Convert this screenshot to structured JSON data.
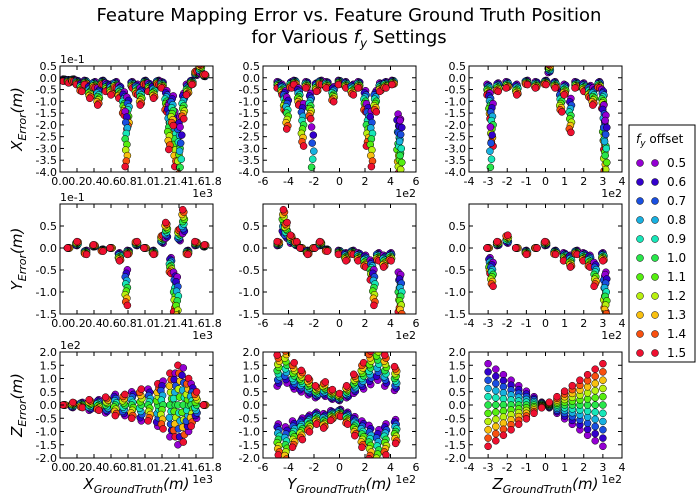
{
  "figure": {
    "title_line1": "Feature Mapping Error vs. Feature Ground Truth Position",
    "title_line2": "for Various f_y Settings"
  },
  "legend": {
    "title": "f_y offset",
    "entries": [
      "0.5",
      "0.6",
      "0.7",
      "0.8",
      "0.9",
      "1.0",
      "1.1",
      "1.2",
      "1.3",
      "1.4",
      "1.5"
    ],
    "colors": [
      "#9400d3",
      "#3300cc",
      "#1a4fe0",
      "#18b0e0",
      "#17e6b8",
      "#28e64a",
      "#55ee10",
      "#b8f010",
      "#f8c010",
      "#f85010",
      "#ee1030"
    ]
  },
  "chart_data": [
    {
      "type": "scatter",
      "row": 0,
      "col": 0,
      "ylabel": "X_{Error}(m)",
      "y_exponent": "1e-1",
      "x_exponent": "1e3",
      "xlim": [
        0,
        1.8
      ],
      "ylim": [
        -4.0,
        0.5
      ],
      "xticks": [
        "0.0",
        "0.2",
        "0.4",
        "0.6",
        "0.8",
        "1.0",
        "1.2",
        "1.4",
        "1.6",
        "1.8"
      ],
      "yticks": [
        "0.5",
        "0.0",
        "-0.5",
        "-1.0",
        "-1.5",
        "-2.0",
        "-2.5",
        "-3.0",
        "-3.5",
        "-4.0"
      ],
      "points": [
        [
          0.05,
          -0.1
        ],
        [
          0.1,
          -0.15
        ],
        [
          0.15,
          -0.1
        ],
        [
          0.2,
          -0.2
        ],
        [
          0.25,
          -0.4
        ],
        [
          0.3,
          -0.2
        ],
        [
          0.35,
          -0.6
        ],
        [
          0.4,
          -0.3
        ],
        [
          0.45,
          -0.8
        ],
        [
          0.5,
          -0.2
        ],
        [
          0.55,
          -0.4
        ],
        [
          0.6,
          -0.5
        ],
        [
          0.65,
          -0.3
        ],
        [
          0.7,
          -0.6
        ],
        [
          0.75,
          -1.1
        ],
        [
          0.8,
          -1.5
        ],
        [
          0.85,
          -0.3
        ],
        [
          0.9,
          -0.5
        ],
        [
          0.95,
          -0.8
        ],
        [
          1.0,
          -0.2
        ],
        [
          1.05,
          -0.4
        ],
        [
          1.1,
          -0.6
        ],
        [
          1.15,
          -0.2
        ],
        [
          1.2,
          -0.3
        ],
        [
          1.25,
          -1.0
        ],
        [
          1.3,
          -1.9
        ],
        [
          1.35,
          -2.6
        ],
        [
          1.4,
          -3.0
        ],
        [
          1.42,
          -3.8
        ],
        [
          1.45,
          -1.2
        ],
        [
          1.5,
          -0.5
        ],
        [
          1.55,
          -0.2
        ],
        [
          1.6,
          0.2
        ],
        [
          1.65,
          0.4
        ],
        [
          1.7,
          0.1
        ],
        [
          0.78,
          -2.6
        ],
        [
          1.28,
          -2.1
        ],
        [
          1.32,
          -1.4
        ]
      ]
    },
    {
      "type": "scatter",
      "row": 0,
      "col": 1,
      "x_exponent": "1e2",
      "xlim": [
        -6,
        6
      ],
      "ylim": [
        -4.0,
        0.5
      ],
      "xticks": [
        "-6",
        "-4",
        "-2",
        "0",
        "2",
        "4",
        "6"
      ],
      "yticks": [
        "0.5",
        "0.0",
        "-0.5",
        "-1.0",
        "-1.5",
        "-2.0",
        "-2.5",
        "-3.0",
        "-3.5",
        "-4.0"
      ],
      "points": [
        [
          -4.8,
          -0.3
        ],
        [
          -4.5,
          -0.5
        ],
        [
          -4.3,
          -1.0
        ],
        [
          -4.1,
          -1.5
        ],
        [
          -3.8,
          -0.3
        ],
        [
          -3.5,
          -0.2
        ],
        [
          -3.2,
          -0.8
        ],
        [
          -2.9,
          -2.0
        ],
        [
          -2.6,
          -0.3
        ],
        [
          -2.3,
          -1.2
        ],
        [
          -2.1,
          -3.8
        ],
        [
          -1.8,
          -0.4
        ],
        [
          -1.5,
          -0.2
        ],
        [
          -1.0,
          -0.3
        ],
        [
          -0.5,
          -0.7
        ],
        [
          0.0,
          -0.2
        ],
        [
          0.5,
          -0.3
        ],
        [
          1.0,
          -0.5
        ],
        [
          1.5,
          -0.3
        ],
        [
          2.0,
          -1.0
        ],
        [
          2.2,
          -2.0
        ],
        [
          2.5,
          -2.6
        ],
        [
          2.8,
          -1.0
        ],
        [
          3.2,
          -0.4
        ],
        [
          3.6,
          -0.3
        ],
        [
          4.2,
          -0.2
        ],
        [
          4.6,
          -2.8
        ],
        [
          4.7,
          -3.2
        ],
        [
          4.8,
          -3.3
        ]
      ]
    },
    {
      "type": "scatter",
      "row": 0,
      "col": 2,
      "x_exponent": "1e2",
      "xlim": [
        -4,
        4
      ],
      "ylim": [
        -4.0,
        0.5
      ],
      "xticks": [
        "-4",
        "-3",
        "-2",
        "-1",
        "0",
        "1",
        "2",
        "3",
        "4"
      ],
      "yticks": [
        "0.5",
        "0.0",
        "-0.5",
        "-1.0",
        "-1.5",
        "-2.0",
        "-2.5",
        "-3.0",
        "-3.5",
        "-4.0"
      ],
      "points": [
        [
          -3.0,
          -0.5
        ],
        [
          -2.9,
          -1.2
        ],
        [
          -2.8,
          -2.0
        ],
        [
          -2.85,
          -3.8
        ],
        [
          -2.5,
          -0.4
        ],
        [
          -2.0,
          -0.3
        ],
        [
          -1.5,
          -0.5
        ],
        [
          -1.0,
          -0.2
        ],
        [
          -0.5,
          -0.3
        ],
        [
          0.0,
          -0.2
        ],
        [
          0.2,
          0.4
        ],
        [
          0.5,
          -0.3
        ],
        [
          0.8,
          -1.0
        ],
        [
          1.0,
          -0.5
        ],
        [
          1.3,
          -1.6
        ],
        [
          1.6,
          -0.3
        ],
        [
          2.0,
          -0.4
        ],
        [
          2.3,
          -0.6
        ],
        [
          2.5,
          -0.8
        ],
        [
          2.8,
          -0.3
        ],
        [
          3.0,
          -0.9
        ],
        [
          3.05,
          -2.1
        ],
        [
          3.1,
          -2.9
        ],
        [
          3.15,
          -3.3
        ]
      ]
    },
    {
      "type": "scatter",
      "row": 1,
      "col": 0,
      "ylabel": "Y_{Error}(m)",
      "y_exponent": "1e-1",
      "x_exponent": "1e3",
      "xlim": [
        0,
        1.8
      ],
      "ylim": [
        -1.5,
        1.0
      ],
      "xticks": [
        "0.0",
        "0.2",
        "0.4",
        "0.6",
        "0.8",
        "1.0",
        "1.2",
        "1.4",
        "1.6",
        "1.8"
      ],
      "yticks": [
        "0.5",
        "0.0",
        "-0.5",
        "-1.0",
        "-1.5"
      ],
      "points": [
        [
          0.1,
          0.0
        ],
        [
          0.2,
          0.1
        ],
        [
          0.3,
          -0.1
        ],
        [
          0.4,
          0.05
        ],
        [
          0.5,
          -0.05
        ],
        [
          0.6,
          0.0
        ],
        [
          0.7,
          -0.2
        ],
        [
          0.78,
          -0.9
        ],
        [
          0.8,
          -0.1
        ],
        [
          0.9,
          0.1
        ],
        [
          1.0,
          0.0
        ],
        [
          1.1,
          -0.1
        ],
        [
          1.2,
          0.2
        ],
        [
          1.25,
          0.4
        ],
        [
          1.3,
          -0.4
        ],
        [
          1.35,
          -1.0
        ],
        [
          1.38,
          -1.2
        ],
        [
          1.4,
          0.3
        ],
        [
          1.45,
          0.6
        ],
        [
          1.5,
          -0.1
        ],
        [
          1.6,
          0.1
        ],
        [
          1.7,
          0.05
        ]
      ]
    },
    {
      "type": "scatter",
      "row": 1,
      "col": 1,
      "x_exponent": "1e2",
      "xlim": [
        -6,
        6
      ],
      "ylim": [
        -1.5,
        1.0
      ],
      "xticks": [
        "-6",
        "-4",
        "-2",
        "0",
        "2",
        "4",
        "6"
      ],
      "yticks": [
        "0.5",
        "0.0",
        "-0.5",
        "-1.0",
        "-1.5"
      ],
      "points": [
        [
          -4.8,
          0.1
        ],
        [
          -4.4,
          0.6
        ],
        [
          -4.2,
          0.4
        ],
        [
          -3.8,
          0.2
        ],
        [
          -3.4,
          0.1
        ],
        [
          -3.0,
          0.0
        ],
        [
          -2.5,
          -0.1
        ],
        [
          -2.0,
          0.0
        ],
        [
          -1.5,
          0.1
        ],
        [
          -1.0,
          -0.05
        ],
        [
          0.0,
          -0.1
        ],
        [
          0.5,
          -0.2
        ],
        [
          1.0,
          -0.1
        ],
        [
          1.5,
          -0.2
        ],
        [
          2.0,
          -0.3
        ],
        [
          2.5,
          -0.5
        ],
        [
          2.7,
          -0.9
        ],
        [
          3.0,
          -0.2
        ],
        [
          3.5,
          -0.3
        ],
        [
          4.0,
          -0.2
        ],
        [
          4.7,
          -1.0
        ],
        [
          4.8,
          -1.1
        ]
      ]
    },
    {
      "type": "scatter",
      "row": 1,
      "col": 2,
      "x_exponent": "1e2",
      "xlim": [
        -4,
        4
      ],
      "ylim": [
        -1.5,
        1.0
      ],
      "xticks": [
        "-4",
        "-3",
        "-2",
        "-1",
        "0",
        "1",
        "2",
        "3",
        "4"
      ],
      "yticks": [
        "0.5",
        "0.0",
        "-0.5",
        "-1.0",
        "-1.5"
      ],
      "points": [
        [
          -3.0,
          0.0
        ],
        [
          -2.9,
          -0.4
        ],
        [
          -2.8,
          -0.6
        ],
        [
          -2.5,
          0.1
        ],
        [
          -2.0,
          0.2
        ],
        [
          -1.5,
          0.0
        ],
        [
          -1.0,
          -0.1
        ],
        [
          -0.5,
          0.0
        ],
        [
          0.0,
          0.1
        ],
        [
          0.5,
          -0.1
        ],
        [
          1.0,
          -0.2
        ],
        [
          1.3,
          -0.3
        ],
        [
          1.6,
          -0.1
        ],
        [
          2.0,
          -0.2
        ],
        [
          2.3,
          -0.3
        ],
        [
          2.6,
          -0.6
        ],
        [
          3.0,
          -0.2
        ],
        [
          3.1,
          -1.0
        ],
        [
          3.15,
          -1.1
        ]
      ]
    },
    {
      "type": "scatter",
      "row": 2,
      "col": 0,
      "ylabel": "Z_{Error}(m)",
      "xlabel": "X_{GroundTruth}(m)",
      "y_exponent": "1e2",
      "x_exponent": "1e3",
      "xlim": [
        0,
        1.8
      ],
      "ylim": [
        -2.0,
        2.0
      ],
      "xticks": [
        "0.0",
        "0.2",
        "0.4",
        "0.6",
        "0.8",
        "1.0",
        "1.2",
        "1.4",
        "1.6",
        "1.8"
      ],
      "yticks": [
        "2.0",
        "1.5",
        "1.0",
        "0.5",
        "0.0",
        "-0.5",
        "-1.0",
        "-1.5",
        "-2.0"
      ],
      "points": [
        [
          0.05,
          0.0
        ],
        [
          0.15,
          0.1
        ],
        [
          0.25,
          -0.1
        ],
        [
          0.35,
          0.2
        ],
        [
          0.45,
          -0.2
        ],
        [
          0.55,
          0.3
        ],
        [
          0.65,
          -0.4
        ],
        [
          0.75,
          0.4
        ],
        [
          0.85,
          -0.5
        ],
        [
          0.95,
          0.6
        ],
        [
          1.05,
          -0.6
        ],
        [
          1.15,
          0.8
        ],
        [
          1.2,
          -0.9
        ],
        [
          1.3,
          1.2
        ],
        [
          1.35,
          -1.2
        ],
        [
          1.4,
          1.5
        ],
        [
          1.45,
          -1.4
        ],
        [
          1.5,
          1.0
        ],
        [
          1.55,
          -0.8
        ],
        [
          1.6,
          0.5
        ],
        [
          1.7,
          0.0
        ]
      ]
    },
    {
      "type": "scatter",
      "row": 2,
      "col": 1,
      "xlabel": "Y_{GroundTruth}(m)",
      "x_exponent": "1e2",
      "xlim": [
        -6,
        6
      ],
      "ylim": [
        -2.0,
        2.0
      ],
      "xticks": [
        "-6",
        "-4",
        "-2",
        "0",
        "2",
        "4",
        "6"
      ],
      "yticks": [
        "2.0",
        "1.5",
        "1.0",
        "0.5",
        "0.0",
        "-0.5",
        "-1.0",
        "-1.5",
        "-2.0"
      ],
      "points": [
        [
          -4.8,
          1.3
        ],
        [
          -4.8,
          -1.3
        ],
        [
          -4.2,
          1.5
        ],
        [
          -4.2,
          -1.5
        ],
        [
          -3.6,
          1.1
        ],
        [
          -3.6,
          -1.1
        ],
        [
          -3.0,
          0.9
        ],
        [
          -3.0,
          -0.9
        ],
        [
          -2.4,
          0.7
        ],
        [
          -2.4,
          -0.7
        ],
        [
          -1.8,
          0.5
        ],
        [
          -1.8,
          -0.5
        ],
        [
          -1.2,
          0.6
        ],
        [
          -1.2,
          -0.6
        ],
        [
          -0.6,
          0.4
        ],
        [
          -0.6,
          -0.4
        ],
        [
          0.0,
          0.3
        ],
        [
          0.0,
          -0.3
        ],
        [
          0.6,
          0.5
        ],
        [
          0.6,
          -0.5
        ],
        [
          1.2,
          0.8
        ],
        [
          1.2,
          -0.8
        ],
        [
          1.8,
          1.1
        ],
        [
          1.8,
          -1.1
        ],
        [
          2.4,
          1.4
        ],
        [
          2.4,
          -1.4
        ],
        [
          3.0,
          1.7
        ],
        [
          3.0,
          -1.7
        ],
        [
          3.6,
          1.3
        ],
        [
          3.6,
          -1.3
        ],
        [
          4.4,
          1.0
        ],
        [
          4.4,
          -1.0
        ]
      ]
    },
    {
      "type": "scatter",
      "row": 2,
      "col": 2,
      "xlabel": "Z_{GroundTruth}(m)",
      "x_exponent": "1e2",
      "xlim": [
        -4,
        4
      ],
      "ylim": [
        -2.0,
        2.0
      ],
      "xticks": [
        "-4",
        "-3",
        "-2",
        "-1",
        "0",
        "1",
        "2",
        "3",
        "4"
      ],
      "yticks": [
        "2.0",
        "1.5",
        "1.0",
        "0.5",
        "0.0",
        "-0.5",
        "-1.0",
        "-1.5",
        "-2.0"
      ],
      "fan_model": "z_error = ((offset-1)/0.5) * 0.52 * x",
      "x_samples": [
        -3.0,
        -2.6,
        -2.2,
        -1.8,
        -1.4,
        -1.0,
        -0.6,
        -0.2,
        0.2,
        0.6,
        1.0,
        1.4,
        1.8,
        2.2,
        2.6,
        3.0
      ]
    }
  ]
}
